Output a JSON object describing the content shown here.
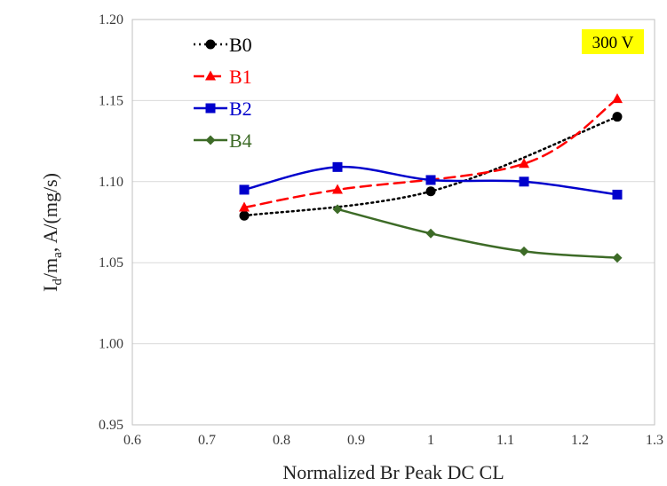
{
  "chart_data": {
    "type": "line",
    "title": "",
    "xlabel": "Normalized Br Peak  DC CL",
    "ylabel_main": "I",
    "ylabel_sub1": "d",
    "ylabel_mid": "/m",
    "ylabel_sub2": "a",
    "ylabel_tail": ", A/(mg/s)",
    "xlim": [
      0.6,
      1.3
    ],
    "ylim": [
      0.95,
      1.2
    ],
    "xticks": [
      0.6,
      0.7,
      0.8,
      0.9,
      1,
      1.1,
      1.2,
      1.3
    ],
    "xtick_labels": [
      "0.6",
      "0.7",
      "0.8",
      "0.9",
      "1",
      "1.1",
      "1.2",
      "1.3"
    ],
    "yticks": [
      0.95,
      1.0,
      1.05,
      1.1,
      1.15,
      1.2
    ],
    "ytick_labels": [
      "0.95",
      "1.00",
      "1.05",
      "1.10",
      "1.15",
      "1.20"
    ],
    "grid": "horizontal",
    "legend_position": "top-left",
    "annotation": {
      "text": "300 V",
      "background": "#ffff00"
    },
    "series": [
      {
        "name": "B0",
        "color": "#000000",
        "dash": "dotted",
        "marker": "circle",
        "x": [
          0.75,
          1.0,
          1.25
        ],
        "y": [
          1.079,
          1.094,
          1.14
        ]
      },
      {
        "name": "B1",
        "color": "#ff0000",
        "dash": "dashed",
        "marker": "triangle",
        "x": [
          0.75,
          0.875,
          1.125,
          1.25
        ],
        "y": [
          1.084,
          1.095,
          1.111,
          1.151
        ]
      },
      {
        "name": "B2",
        "color": "#0000cc",
        "dash": "solid",
        "marker": "square",
        "x": [
          0.75,
          0.875,
          1.0,
          1.125,
          1.25
        ],
        "y": [
          1.095,
          1.109,
          1.101,
          1.1,
          1.092
        ]
      },
      {
        "name": "B4",
        "color": "#3d6b27",
        "dash": "solid",
        "marker": "diamond",
        "x": [
          0.875,
          1.0,
          1.125,
          1.25
        ],
        "y": [
          1.083,
          1.068,
          1.057,
          1.053
        ]
      }
    ]
  }
}
